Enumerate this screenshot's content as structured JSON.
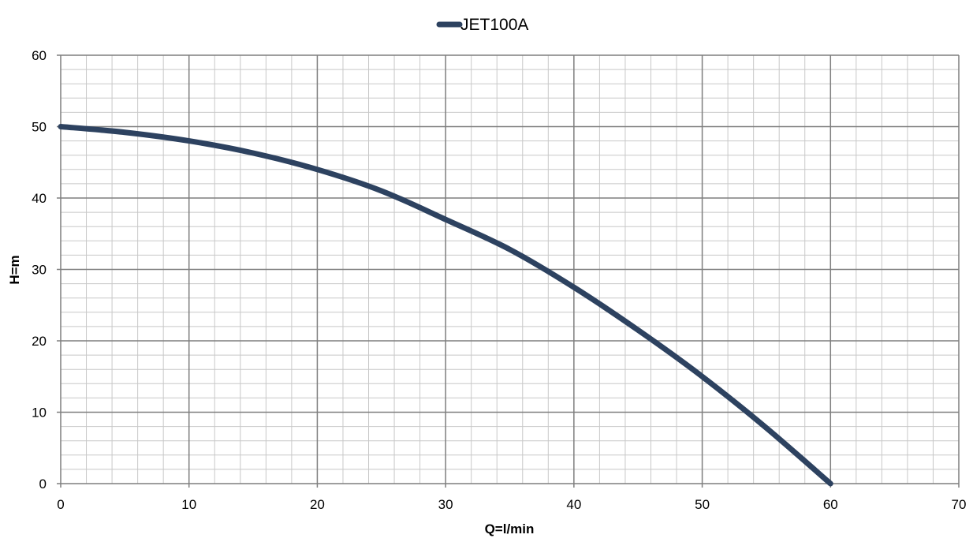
{
  "chart_data": {
    "type": "line",
    "title": "",
    "xlabel": "Q=l/min",
    "ylabel": "H=m",
    "xlim": [
      0,
      70
    ],
    "ylim": [
      0,
      60
    ],
    "x_ticks": [
      0,
      10,
      20,
      30,
      40,
      50,
      60,
      70
    ],
    "y_ticks": [
      0,
      10,
      20,
      30,
      40,
      50,
      60
    ],
    "x_minor_step": 2,
    "y_minor_step": 2,
    "grid": true,
    "legend": "top-center",
    "series": [
      {
        "name": "JET100A",
        "color": "#2d4260",
        "x": [
          0,
          5,
          10,
          15,
          20,
          25,
          30,
          35,
          40,
          45,
          50,
          55,
          60
        ],
        "y": [
          50,
          49.2,
          48,
          46.3,
          44,
          41,
          37,
          32.8,
          27.5,
          21.5,
          15,
          7.8,
          0
        ]
      }
    ]
  }
}
